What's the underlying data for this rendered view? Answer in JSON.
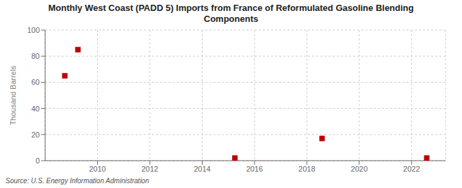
{
  "chart_data": {
    "type": "scatter",
    "title": "Monthly West Coast (PADD 5) Imports from France of Reformulated Gasoline Blending\nComponents",
    "ylabel": "Thousand Barrels",
    "source": "Source: U.S. Energy Information Administration",
    "x": [
      2008.75,
      2009.25,
      2015.25,
      2018.58,
      2022.58
    ],
    "values": [
      65,
      85,
      2,
      17,
      2
    ],
    "color": "#bb0000",
    "marker": "square",
    "xlim": [
      2008,
      2023.3
    ],
    "xticks": [
      2010,
      2012,
      2014,
      2016,
      2018,
      2020,
      2022
    ],
    "ylim": [
      0,
      100
    ],
    "yticks": [
      0,
      20,
      40,
      60,
      80,
      100
    ],
    "grid": true
  }
}
